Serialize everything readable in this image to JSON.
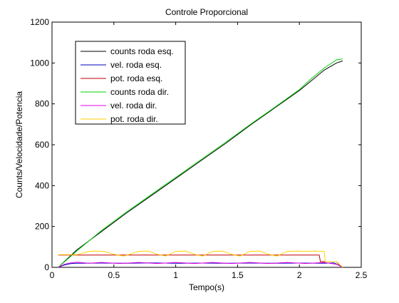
{
  "chart_data": {
    "type": "line",
    "title": "Controle Proporcional",
    "xlabel": "Tempo(s)",
    "ylabel": "Counts/Velocidade/Potencia",
    "xlim": [
      0,
      2.5
    ],
    "ylim": [
      0,
      1200
    ],
    "xticks": [
      0,
      0.5,
      1,
      1.5,
      2,
      2.5
    ],
    "xtick_labels": [
      "0",
      "0.5",
      "1",
      "1.5",
      "2",
      "2.5"
    ],
    "yticks": [
      0,
      200,
      400,
      600,
      800,
      1000,
      1200
    ],
    "ytick_labels": [
      "0",
      "200",
      "400",
      "600",
      "800",
      "1000",
      "1200"
    ],
    "grid": false,
    "legend_position": "top-left",
    "series": [
      {
        "name": "counts roda esq.",
        "color": "#000000",
        "x": [
          0.05,
          0.2,
          0.4,
          0.6,
          0.8,
          1.0,
          1.2,
          1.4,
          1.6,
          1.8,
          2.0,
          2.1,
          2.2,
          2.3,
          2.35
        ],
        "y": [
          0,
          85,
          175,
          265,
          350,
          435,
          520,
          605,
          695,
          780,
          865,
          915,
          965,
          1000,
          1010
        ]
      },
      {
        "name": "vel. roda esq.",
        "color": "#0000c0",
        "x": [
          0.05,
          0.1,
          0.15,
          0.2,
          0.4,
          0.6,
          0.8,
          1.0,
          1.2,
          1.4,
          1.6,
          1.8,
          2.0,
          2.2,
          2.28,
          2.32,
          2.35
        ],
        "y": [
          0,
          12,
          18,
          20,
          21,
          20,
          22,
          20,
          21,
          20,
          21,
          20,
          21,
          20,
          22,
          10,
          2
        ]
      },
      {
        "name": "pot. roda esq.",
        "color": "#c00000",
        "x": [
          0.05,
          0.5,
          1.0,
          1.5,
          2.0,
          2.16,
          2.17,
          2.3,
          2.31,
          2.35
        ],
        "y": [
          60,
          60,
          60,
          60,
          60,
          60,
          28,
          28,
          20,
          0
        ]
      },
      {
        "name": "counts roda dir.",
        "color": "#00d000",
        "x": [
          0.05,
          0.2,
          0.4,
          0.6,
          0.8,
          1.0,
          1.2,
          1.4,
          1.6,
          1.8,
          2.0,
          2.1,
          2.2,
          2.3,
          2.35
        ],
        "y": [
          0,
          80,
          180,
          270,
          355,
          440,
          525,
          610,
          698,
          783,
          870,
          925,
          975,
          1015,
          1020
        ]
      },
      {
        "name": "vel. roda dir.",
        "color": "#e000e0",
        "x": [
          0.05,
          0.1,
          0.15,
          0.2,
          0.3,
          0.4,
          0.55,
          0.7,
          0.85,
          1.0,
          1.15,
          1.3,
          1.45,
          1.6,
          1.75,
          1.9,
          2.05,
          2.2,
          2.3,
          2.35
        ],
        "y": [
          0,
          15,
          22,
          25,
          20,
          24,
          19,
          24,
          19,
          24,
          19,
          24,
          19,
          24,
          19,
          24,
          19,
          24,
          15,
          0
        ]
      },
      {
        "name": "pot. roda dir.",
        "color": "#ffd000",
        "x": [
          0.05,
          0.2,
          0.3,
          0.35,
          0.42,
          0.5,
          0.58,
          0.62,
          0.7,
          0.78,
          0.85,
          0.92,
          1.0,
          1.08,
          1.15,
          1.22,
          1.3,
          1.38,
          1.45,
          1.52,
          1.6,
          1.68,
          1.75,
          1.82,
          1.9,
          1.98,
          2.05,
          2.12,
          2.2,
          2.21,
          2.3,
          2.35
        ],
        "y": [
          62,
          62,
          78,
          80,
          78,
          64,
          55,
          62,
          78,
          80,
          64,
          55,
          78,
          80,
          64,
          55,
          78,
          80,
          64,
          55,
          78,
          80,
          64,
          55,
          78,
          80,
          78,
          80,
          78,
          28,
          28,
          0
        ]
      }
    ]
  }
}
